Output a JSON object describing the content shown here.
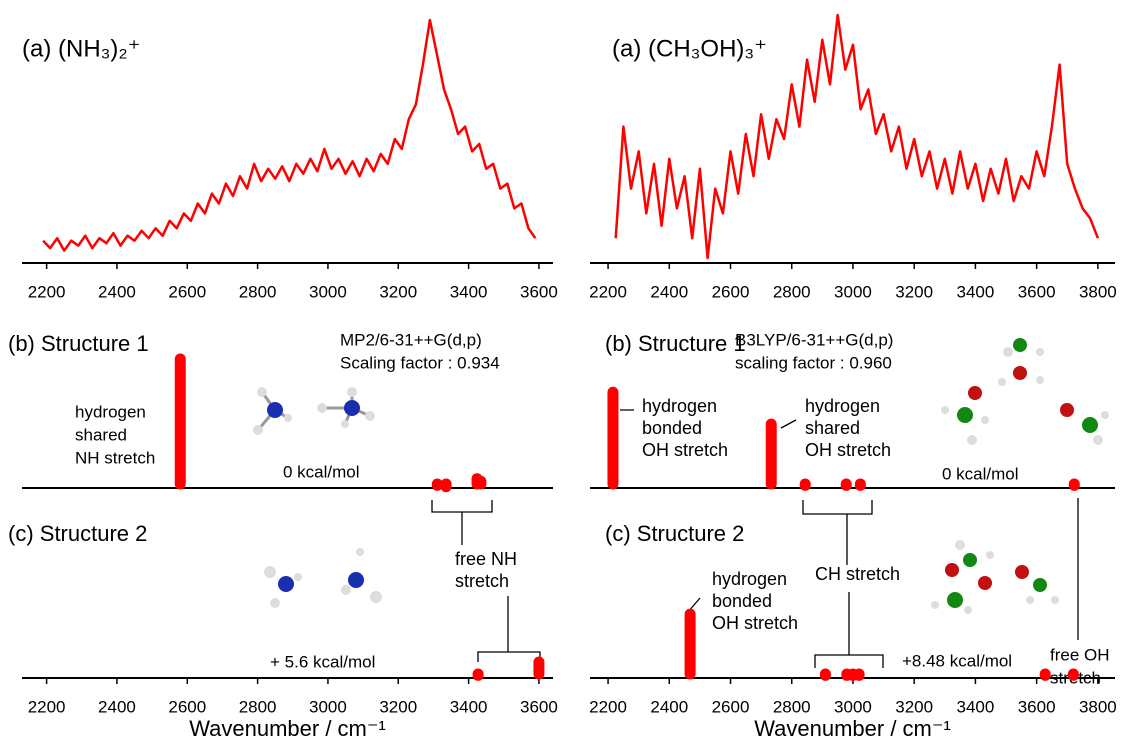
{
  "chart_data": [
    {
      "type": "line",
      "title": "(a) (NH₃)₂⁺",
      "color": "#ff0000",
      "xlim": [
        2130,
        3640
      ],
      "ylim": [
        0,
        1
      ],
      "xticks": [
        2200,
        2400,
        2600,
        2800,
        3000,
        3200,
        3400,
        3600
      ],
      "x": [
        2190,
        2210,
        2230,
        2250,
        2270,
        2290,
        2310,
        2330,
        2350,
        2370,
        2390,
        2410,
        2430,
        2450,
        2470,
        2490,
        2510,
        2530,
        2550,
        2570,
        2590,
        2610,
        2630,
        2650,
        2670,
        2690,
        2710,
        2730,
        2750,
        2770,
        2790,
        2810,
        2830,
        2850,
        2870,
        2890,
        2910,
        2930,
        2950,
        2970,
        2990,
        3010,
        3030,
        3050,
        3070,
        3090,
        3110,
        3130,
        3150,
        3170,
        3190,
        3210,
        3230,
        3250,
        3270,
        3290,
        3310,
        3330,
        3350,
        3370,
        3390,
        3410,
        3430,
        3450,
        3470,
        3490,
        3510,
        3530,
        3550,
        3570,
        3590
      ],
      "values": [
        0.09,
        0.06,
        0.1,
        0.05,
        0.09,
        0.07,
        0.11,
        0.06,
        0.1,
        0.08,
        0.12,
        0.07,
        0.11,
        0.09,
        0.13,
        0.1,
        0.14,
        0.11,
        0.17,
        0.14,
        0.2,
        0.17,
        0.24,
        0.2,
        0.28,
        0.24,
        0.32,
        0.27,
        0.35,
        0.3,
        0.4,
        0.33,
        0.38,
        0.34,
        0.39,
        0.33,
        0.4,
        0.36,
        0.42,
        0.37,
        0.46,
        0.38,
        0.42,
        0.36,
        0.41,
        0.35,
        0.42,
        0.37,
        0.44,
        0.4,
        0.5,
        0.46,
        0.58,
        0.64,
        0.8,
        0.98,
        0.84,
        0.7,
        0.62,
        0.52,
        0.55,
        0.45,
        0.48,
        0.38,
        0.4,
        0.3,
        0.32,
        0.22,
        0.24,
        0.14,
        0.1
      ]
    },
    {
      "type": "stick",
      "title": "(b) Structure 1",
      "color": "#ff0000",
      "xlim": [
        2130,
        3640
      ],
      "ylim": [
        0,
        1
      ],
      "annotations": [
        "MP2/6-31++G(d,p)",
        "Scaling factor : 0.934",
        "hydrogen",
        "shared",
        "NH stretch",
        "0 kcal/mol"
      ],
      "x": [
        2580,
        3311,
        3336,
        3424,
        3435
      ],
      "values": [
        1.0,
        0.05,
        0.04,
        0.1,
        0.08
      ]
    },
    {
      "type": "stick",
      "title": "(c) Structure 2",
      "color": "#ff0000",
      "xlim": [
        2130,
        3640
      ],
      "ylim": [
        0,
        1
      ],
      "xticks": [
        2200,
        2400,
        2600,
        2800,
        3000,
        3200,
        3400,
        3600
      ],
      "x_label": "Wavenumber / cm⁻¹",
      "annotations": [
        "free NH",
        "stretch",
        "+ 5.6 kcal/mol"
      ],
      "x": [
        3427,
        3600
      ],
      "values": [
        0.05,
        0.15
      ]
    },
    {
      "type": "line",
      "title": "(a) (CH₃OH)₃⁺",
      "color": "#ff0000",
      "xlim": [
        2141,
        3856
      ],
      "ylim": [
        0,
        1
      ],
      "xticks": [
        2200,
        2400,
        2600,
        2800,
        3000,
        3200,
        3400,
        3600,
        3800
      ],
      "x": [
        2225,
        2250,
        2275,
        2300,
        2325,
        2350,
        2375,
        2400,
        2425,
        2450,
        2475,
        2500,
        2525,
        2550,
        2575,
        2600,
        2625,
        2650,
        2675,
        2700,
        2725,
        2750,
        2775,
        2800,
        2825,
        2850,
        2875,
        2900,
        2925,
        2950,
        2975,
        3000,
        3025,
        3050,
        3075,
        3100,
        3125,
        3150,
        3175,
        3200,
        3225,
        3250,
        3275,
        3300,
        3325,
        3350,
        3375,
        3400,
        3425,
        3450,
        3475,
        3500,
        3525,
        3550,
        3575,
        3600,
        3625,
        3650,
        3675,
        3700,
        3725,
        3750,
        3775,
        3800
      ],
      "values": [
        0.1,
        0.55,
        0.3,
        0.45,
        0.2,
        0.4,
        0.15,
        0.42,
        0.22,
        0.35,
        0.1,
        0.38,
        0.02,
        0.3,
        0.2,
        0.45,
        0.28,
        0.52,
        0.35,
        0.6,
        0.42,
        0.58,
        0.5,
        0.72,
        0.55,
        0.82,
        0.65,
        0.9,
        0.72,
        1.0,
        0.78,
        0.88,
        0.62,
        0.7,
        0.52,
        0.6,
        0.45,
        0.55,
        0.38,
        0.5,
        0.35,
        0.45,
        0.3,
        0.42,
        0.28,
        0.45,
        0.3,
        0.4,
        0.25,
        0.38,
        0.28,
        0.42,
        0.25,
        0.35,
        0.3,
        0.45,
        0.35,
        0.55,
        0.8,
        0.4,
        0.3,
        0.22,
        0.18,
        0.1
      ]
    },
    {
      "type": "stick",
      "title": "(b) Structure 1",
      "color": "#ff0000",
      "xlim": [
        2141,
        3856
      ],
      "ylim": [
        0,
        1
      ],
      "annotations": [
        "B3LYP/6-31++G(d,p)",
        "scaling factor : 0.960",
        "hydrogen",
        "bonded",
        "OH stretch",
        "hydrogen",
        "shared",
        "OH stretch",
        "0 kcal/mol"
      ],
      "x": [
        2216,
        2733,
        2844,
        2978,
        3024,
        3723
      ],
      "values": [
        0.75,
        0.51,
        0.05,
        0.05,
        0.05,
        0.05
      ]
    },
    {
      "type": "stick",
      "title": "(c) Structure 2",
      "color": "#ff0000",
      "xlim": [
        2141,
        3856
      ],
      "ylim": [
        0,
        1
      ],
      "xticks": [
        2200,
        2400,
        2600,
        2800,
        3000,
        3200,
        3400,
        3600,
        3800
      ],
      "x_label": "Wavenumber / cm⁻¹",
      "annotations": [
        "hydrogen",
        "bonded",
        "OH stretch",
        "CH stretch",
        "+8.48 kcal/mol",
        "free OH",
        "stretch"
      ],
      "x": [
        2468,
        2910,
        2980,
        3000,
        3020,
        3628,
        3720
      ],
      "values": [
        0.51,
        0.05,
        0.05,
        0.05,
        0.05,
        0.05,
        0.05
      ]
    }
  ]
}
